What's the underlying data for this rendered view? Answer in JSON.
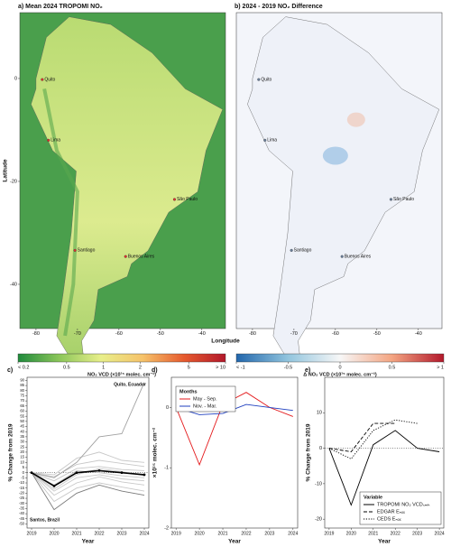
{
  "maps": [
    {
      "title": "a) Mean 2024 TROPOMI NO₂"
    },
    {
      "title": "b) 2024 - 2019 NO₂ Difference"
    }
  ],
  "map_axes": {
    "xlabel": "Longitude",
    "ylabel": "Latitude",
    "lonlim": [
      -83.9,
      -34.3
    ],
    "latlim": [
      -48.6,
      12.8
    ],
    "xticks": [
      -80,
      -70,
      -60,
      -50,
      -40
    ],
    "yticks": [
      0,
      -20,
      -40
    ]
  },
  "cities": [
    "Quito",
    "Lima",
    "Santiago",
    "Buenos Aires",
    "São Paulo"
  ],
  "colorbars": [
    {
      "label": "NO₂ VCD (×10¹⁵ molec. cm⁻²)",
      "scale": "log",
      "lim": [
        0.2,
        10
      ],
      "ticks": [
        {
          "value": 0.2,
          "label": "< 0.2"
        },
        0.5,
        1,
        2,
        5,
        {
          "value": 10,
          "label": "> 10"
        }
      ],
      "colors": [
        "#1f8a3c",
        "#8cc65a",
        "#e8ef8a",
        "#f6c36a",
        "#e65a2e",
        "#b2182b"
      ]
    },
    {
      "label": "Δ NO₂ VCD (×10¹⁵ molec. cm⁻²)",
      "scale": "linear",
      "lim": [
        -1,
        1
      ],
      "ticks": [
        {
          "value": -1,
          "label": "< -1"
        },
        -0.5,
        0,
        0.5,
        {
          "value": 1,
          "label": "> 1"
        }
      ],
      "colors": [
        "#2166ac",
        "#92c5de",
        "#f7f7f7",
        "#f4a582",
        "#b2182b"
      ]
    }
  ],
  "chart_data": [
    {
      "type": "line",
      "title": "c)",
      "xlabel": "Year",
      "ylabel": "% Change from 2019",
      "x": [
        2019,
        2020,
        2021,
        2022,
        2023,
        2024
      ],
      "xlim": [
        2018.8,
        2024.2
      ],
      "ylim": [
        -54,
        93
      ],
      "yticks": [
        -50,
        -45,
        -40,
        -35,
        -30,
        -25,
        -20,
        -15,
        -10,
        -5,
        0,
        5,
        10,
        15,
        20,
        25,
        30,
        35,
        40,
        45,
        50,
        55,
        60,
        65,
        70,
        75,
        80,
        85,
        90
      ],
      "hline": 0,
      "annotations": [
        "Quito, Ecuador",
        "Santos, Brazil"
      ],
      "series": [
        {
          "color": "#c8c8c8",
          "values": [
            0,
            -8,
            4,
            6,
            3,
            2
          ]
        },
        {
          "color": "#c8c8c8",
          "values": [
            0,
            -18,
            -5,
            -2,
            -6,
            -8
          ]
        },
        {
          "color": "#c8c8c8",
          "values": [
            0,
            -22,
            -10,
            -4,
            -9,
            -12
          ]
        },
        {
          "color": "#c8c8c8",
          "values": [
            0,
            -4,
            8,
            12,
            9,
            6
          ]
        },
        {
          "color": "#c8c8c8",
          "values": [
            0,
            -12,
            2,
            0,
            -3,
            -5
          ]
        },
        {
          "color": "#c8c8c8",
          "values": [
            0,
            -28,
            -15,
            -10,
            -14,
            -18
          ]
        },
        {
          "color": "#c8c8c8",
          "values": [
            0,
            -2,
            14,
            20,
            12,
            10
          ]
        },
        {
          "color": "#c8c8c8",
          "values": [
            0,
            -16,
            -2,
            4,
            1,
            -3
          ]
        },
        {
          "color": "#a0a0a0",
          "values": [
            0,
            -5,
            10,
            35,
            38,
            88
          ]
        },
        {
          "color": "#7a7a7a",
          "values": [
            0,
            -36,
            -20,
            -12,
            -18,
            -22
          ]
        },
        {
          "color": "#000000",
          "width": 1.6,
          "markers": true,
          "values": [
            0,
            -13,
            0,
            2,
            0,
            -2
          ]
        }
      ]
    },
    {
      "type": "line",
      "title": "d)",
      "xlabel": "Year",
      "ylabel": "×10¹⁵ molec. cm⁻²",
      "x": [
        2019,
        2020,
        2021,
        2022,
        2023,
        2024
      ],
      "xlim": [
        2018.8,
        2024.2
      ],
      "ylim": [
        -2,
        0.5
      ],
      "yticks": [
        -2,
        -1,
        0
      ],
      "legend_title": "Months",
      "legend": "upper left",
      "series": [
        {
          "name": "May - Sep.",
          "color": "#e41a1c",
          "values": [
            0,
            -0.95,
            0.05,
            0.25,
            0,
            -0.15
          ]
        },
        {
          "name": "Nov. - Mar.",
          "color": "#1f3fbf",
          "values": [
            0,
            -0.12,
            -0.1,
            0.05,
            0,
            -0.05
          ]
        }
      ]
    },
    {
      "type": "line",
      "title": "e)",
      "xlabel": "Year",
      "ylabel": "% Change from 2019",
      "x": [
        2019,
        2020,
        2021,
        2022,
        2023,
        2024
      ],
      "xlim": [
        2018.8,
        2024.2
      ],
      "ylim": [
        -22.5,
        20
      ],
      "yticks": [
        -20,
        -10,
        0,
        10
      ],
      "hline": 0,
      "legend_title": "Variable",
      "legend": "lower right",
      "series": [
        {
          "name": "TROPOMI NO₂ VCDₛₘₕ",
          "color": "#000000",
          "values": [
            0,
            -16,
            1,
            5,
            0,
            -1
          ]
        },
        {
          "name": "EDGAR Eₙₒₓ",
          "color": "#000000",
          "dash": "4,2",
          "values": [
            0,
            -1,
            7,
            7,
            null,
            null
          ]
        },
        {
          "name": "CEDS Eₙₒₓ",
          "color": "#000000",
          "dash": "1.2,1.6",
          "values": [
            0,
            -3,
            5,
            8,
            7,
            null
          ]
        }
      ]
    }
  ]
}
